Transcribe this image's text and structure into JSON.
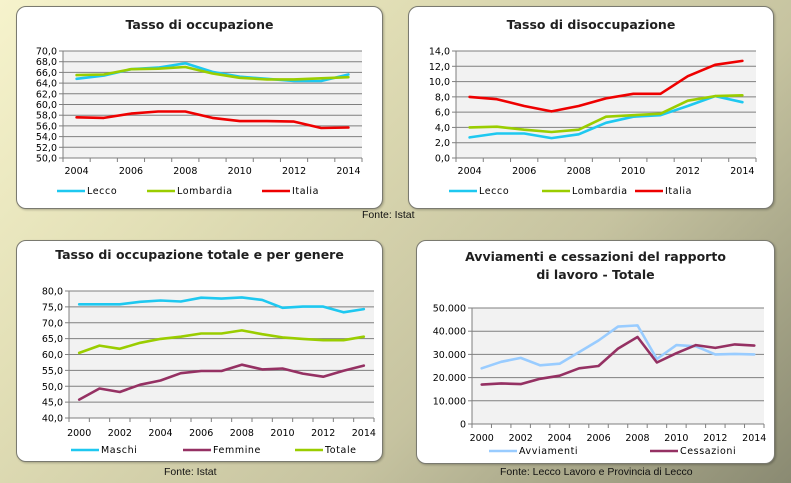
{
  "chart_data": [
    {
      "id": "c1",
      "type": "line",
      "title": "Tasso di occupazione",
      "xlabel": "",
      "ylabel": "",
      "x": [
        2004,
        2005,
        2006,
        2007,
        2008,
        2009,
        2010,
        2011,
        2012,
        2013,
        2014
      ],
      "xtick_labels": [
        "2004",
        "2006",
        "2008",
        "2010",
        "2012",
        "2014"
      ],
      "ylim": [
        50,
        70
      ],
      "ytick_labels": [
        "50,0",
        "52,0",
        "54,0",
        "56,0",
        "58,0",
        "60,0",
        "62,0",
        "64,0",
        "66,0",
        "68,0",
        "70,0"
      ],
      "yticks": [
        50,
        52,
        54,
        56,
        58,
        60,
        62,
        64,
        66,
        68,
        70
      ],
      "grid": true,
      "legend": "bottom",
      "series": [
        {
          "name": "Lecco",
          "color": "#1ec8f0",
          "values": [
            64.8,
            65.4,
            66.6,
            66.9,
            67.7,
            66.1,
            65.2,
            64.8,
            64.4,
            64.4,
            65.6
          ]
        },
        {
          "name": "Lombardia",
          "color": "#9acd00",
          "values": [
            65.5,
            65.6,
            66.6,
            66.7,
            67.0,
            65.8,
            65.0,
            64.7,
            64.7,
            64.9,
            65.1
          ]
        },
        {
          "name": "Italia",
          "color": "#ee0000",
          "values": [
            57.6,
            57.5,
            58.3,
            58.7,
            58.7,
            57.5,
            56.9,
            56.9,
            56.8,
            55.6,
            55.7
          ]
        }
      ]
    },
    {
      "id": "c2",
      "type": "line",
      "title": "Tasso di disoccupazione",
      "xlabel": "",
      "ylabel": "",
      "x": [
        2004,
        2005,
        2006,
        2007,
        2008,
        2009,
        2010,
        2011,
        2012,
        2013,
        2014
      ],
      "xtick_labels": [
        "2004",
        "2006",
        "2008",
        "2010",
        "2012",
        "2014"
      ],
      "ylim": [
        0,
        14
      ],
      "ytick_labels": [
        "0,0",
        "2,0",
        "4,0",
        "6,0",
        "8,0",
        "10,0",
        "12,0",
        "14,0"
      ],
      "yticks": [
        0,
        2,
        4,
        6,
        8,
        10,
        12,
        14
      ],
      "grid": true,
      "legend": "bottom",
      "series": [
        {
          "name": "Lecco",
          "color": "#1ec8f0",
          "values": [
            2.7,
            3.2,
            3.2,
            2.6,
            3.1,
            4.6,
            5.4,
            5.6,
            6.8,
            8.1,
            7.3
          ]
        },
        {
          "name": "Lombardia",
          "color": "#9acd00",
          "values": [
            4.0,
            4.1,
            3.7,
            3.4,
            3.7,
            5.4,
            5.6,
            5.8,
            7.5,
            8.1,
            8.2
          ]
        },
        {
          "name": "Italia",
          "color": "#ee0000",
          "values": [
            8.0,
            7.7,
            6.8,
            6.1,
            6.8,
            7.8,
            8.4,
            8.4,
            10.7,
            12.2,
            12.7
          ]
        }
      ]
    },
    {
      "id": "c3",
      "type": "line",
      "title": "Tasso di occupazione totale e per genere",
      "xlabel": "",
      "ylabel": "",
      "x": [
        2000,
        2001,
        2002,
        2003,
        2004,
        2005,
        2006,
        2007,
        2008,
        2009,
        2010,
        2011,
        2012,
        2013,
        2014
      ],
      "xtick_labels": [
        "2000",
        "2002",
        "2004",
        "2006",
        "2008",
        "2010",
        "2012",
        "2014"
      ],
      "ylim": [
        40,
        80
      ],
      "ytick_labels": [
        "40,0",
        "45,0",
        "50,0",
        "55,0",
        "60,0",
        "65,0",
        "70,0",
        "75,0",
        "80,0"
      ],
      "yticks": [
        40,
        45,
        50,
        55,
        60,
        65,
        70,
        75,
        80
      ],
      "grid": true,
      "legend": "bottom",
      "series": [
        {
          "name": "Maschi",
          "color": "#1ec8f0",
          "values": [
            75.8,
            75.8,
            75.8,
            76.6,
            77.0,
            76.7,
            77.9,
            77.6,
            78.0,
            77.2,
            74.7,
            75.1,
            75.1,
            73.3,
            74.3
          ]
        },
        {
          "name": "Femmine",
          "color": "#953163",
          "values": [
            45.8,
            49.3,
            48.2,
            50.5,
            51.8,
            54.1,
            54.8,
            54.8,
            56.8,
            55.3,
            55.6,
            54.0,
            53.0,
            54.9,
            56.5
          ]
        },
        {
          "name": "Totale",
          "color": "#9acd00",
          "values": [
            60.5,
            62.8,
            61.8,
            63.7,
            64.9,
            65.6,
            66.6,
            66.6,
            67.6,
            66.4,
            65.4,
            64.9,
            64.5,
            64.5,
            65.6
          ]
        }
      ]
    },
    {
      "id": "c4",
      "type": "line",
      "title": "Avviamenti e cessazioni del rapporto",
      "title2": "di lavoro - Totale",
      "xlabel": "",
      "ylabel": "",
      "x": [
        2000,
        2001,
        2002,
        2003,
        2004,
        2005,
        2006,
        2007,
        2008,
        2009,
        2010,
        2011,
        2012,
        2013,
        2014
      ],
      "xtick_labels": [
        "2000",
        "2002",
        "2004",
        "2006",
        "2008",
        "2010",
        "2012",
        "2014"
      ],
      "ylim": [
        0,
        50000
      ],
      "ytick_labels": [
        "0",
        "10.000",
        "20.000",
        "30.000",
        "40.000",
        "50.000"
      ],
      "yticks": [
        0,
        10000,
        20000,
        30000,
        40000,
        50000
      ],
      "grid": true,
      "legend": "bottom",
      "series": [
        {
          "name": "Avviamenti",
          "color": "#99ccff",
          "values": [
            24000,
            26800,
            28500,
            25300,
            26000,
            31000,
            36000,
            42000,
            42500,
            28000,
            34000,
            33500,
            30000,
            30200,
            30000
          ]
        },
        {
          "name": "Cessazioni",
          "color": "#953163",
          "values": [
            17000,
            17500,
            17200,
            19500,
            20800,
            24000,
            25000,
            32500,
            37500,
            26500,
            30500,
            34000,
            32800,
            34300,
            33800
          ]
        }
      ]
    }
  ],
  "sources": {
    "top": "Fonte: Istat",
    "bottom_left": "Fonte: Istat",
    "bottom_right": "Fonte: Lecco Lavoro e Provincia di Lecco"
  }
}
